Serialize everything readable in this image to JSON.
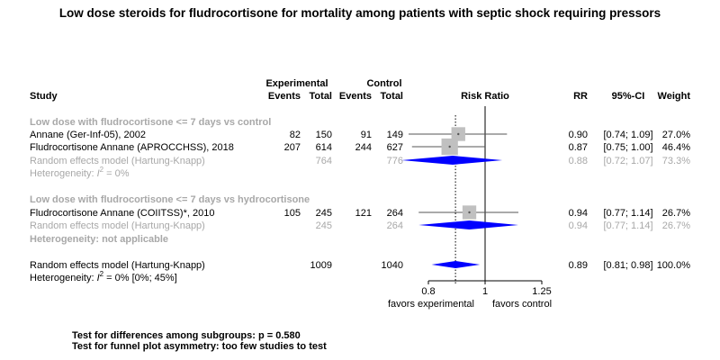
{
  "chart_data": {
    "type": "forest",
    "title": "Low dose steroids for fludrocortisone for mortality among patients with septic shock requiring pressors",
    "header": {
      "study": "Study",
      "experimental": "Experimental",
      "control": "Control",
      "events_exp": "Events",
      "total_exp": "Total",
      "events_ctl": "Events",
      "total_ctl": "Total",
      "effect": "Risk Ratio",
      "rr": "RR",
      "ci": "95%-CI",
      "weight": "Weight"
    },
    "xaxis": {
      "scale": "log",
      "ticks": [
        0.8,
        1,
        1.25
      ],
      "tick_labels": [
        "0.8",
        "1",
        "1.25"
      ],
      "range": [
        0.756,
        1.33
      ],
      "label_left": "favors experimental",
      "label_right": "favors control"
    },
    "subgroups": [
      {
        "name": "Low dose with fludrocortisone <= 7 days vs control",
        "studies": [
          {
            "study": "Annane (Ger-Inf-05), 2002",
            "events_e": "82",
            "total_e": "150",
            "events_c": "91",
            "total_c": "149",
            "rr": 0.9,
            "lower": 0.74,
            "upper": 1.09,
            "rr_text": "0.90",
            "ci_text": "[0.74; 1.09]",
            "weight": "27.0%"
          },
          {
            "study": "Fludrocortisone  Annane (APROCCHSS), 2018",
            "events_e": "207",
            "total_e": "614",
            "events_c": "244",
            "total_c": "627",
            "rr": 0.87,
            "lower": 0.75,
            "upper": 1.0,
            "rr_text": "0.87",
            "ci_text": "[0.75; 1.00]",
            "weight": "46.4%"
          }
        ],
        "pooled": {
          "label": "Random effects model  (Hartung-Knapp)",
          "total_e": "764",
          "total_c": "776",
          "rr": 0.88,
          "lower": 0.72,
          "upper": 1.07,
          "rr_text": "0.88",
          "ci_text": "[0.72; 1.07]",
          "weight": "73.3%"
        },
        "heterogeneity": {
          "prefix": "Heterogeneity: ",
          "i2": "I",
          "sup": "2",
          "suffix": " = 0%"
        }
      },
      {
        "name": "Low dose with fludrocortisone <= 7 days vs hydrocortisone",
        "studies": [
          {
            "study": "Fludrocortisone  Annane (COIITSS)*, 2010",
            "events_e": "105",
            "total_e": "245",
            "events_c": "121",
            "total_c": "264",
            "rr": 0.94,
            "lower": 0.77,
            "upper": 1.14,
            "rr_text": "0.94",
            "ci_text": "[0.77; 1.14]",
            "weight": "26.7%"
          }
        ],
        "pooled": {
          "label": "Random effects model  (Hartung-Knapp)",
          "total_e": "245",
          "total_c": "264",
          "rr": 0.94,
          "lower": 0.77,
          "upper": 1.14,
          "rr_text": "0.94",
          "ci_text": "[0.77; 1.14]",
          "weight": "26.7%"
        },
        "heterogeneity_text": "Heterogeneity: not applicable"
      }
    ],
    "overall": {
      "label": "Random effects model  (Hartung-Knapp)",
      "total_e": "1009",
      "total_c": "1040",
      "rr": 0.89,
      "lower": 0.81,
      "upper": 0.98,
      "rr_text": "0.89",
      "ci_text": "[0.81; 0.98]",
      "weight": "100.0%"
    },
    "overall_heterogeneity": {
      "prefix": "Heterogeneity: ",
      "i2": "I",
      "sup": "2",
      "suffix": " = 0% [0%; 45%]"
    },
    "footer": [
      "Test for differences among subgroups: p = 0.580",
      "Test for funnel plot asymmetry: too few studies to test"
    ],
    "colors": {
      "diamond": "#0000ff",
      "square": "#c0c0c0",
      "grey_text": "#a8a8a8"
    }
  }
}
